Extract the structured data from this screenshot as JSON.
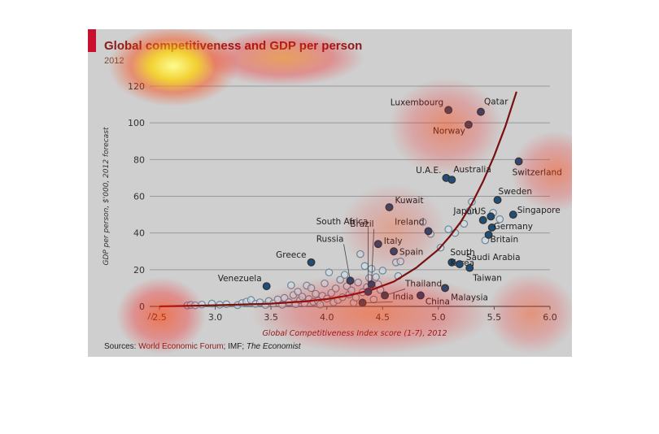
{
  "header": {
    "title": "Global competitiveness and GDP per person",
    "subtitle": "2012"
  },
  "footer": {
    "sources_prefix": "Sources: ",
    "source_wef": "World Economic Forum",
    "source_sep": "; IMF; ",
    "source_economist": "The Economist"
  },
  "colors": {
    "background": "#cfcfcf",
    "curve": "#7a1010",
    "highlight_point": "#1f4e79",
    "point_fill": "#cfe0ea",
    "point_stroke": "#6f8796",
    "title": "#8b1a1a"
  },
  "chart_data": {
    "type": "scatter",
    "title": "Global competitiveness and GDP per person",
    "subtitle": "2012",
    "xlabel": "Global Competitiveness Index score (1-7), 2012",
    "ylabel": "GDP per person, $'000, 2012 forecast",
    "xlim": [
      2.5,
      6.0
    ],
    "ylim": [
      0,
      120
    ],
    "xticks": [
      "2.5",
      "3.0",
      "3.5",
      "4.0",
      "4.5",
      "5.0",
      "5.5",
      "6.0"
    ],
    "yticks": [
      "0",
      "20",
      "40",
      "60",
      "80",
      "100",
      "120"
    ],
    "grid": "horizontal",
    "labeled_points": [
      {
        "label": "Luxembourg",
        "x": 5.09,
        "y": 107
      },
      {
        "label": "Qatar",
        "x": 5.38,
        "y": 106
      },
      {
        "label": "Norway",
        "x": 5.27,
        "y": 99
      },
      {
        "label": "Switzerland",
        "x": 5.72,
        "y": 79
      },
      {
        "label": "U.A.E.",
        "x": 5.07,
        "y": 70
      },
      {
        "label": "Australia",
        "x": 5.12,
        "y": 69
      },
      {
        "label": "Sweden",
        "x": 5.53,
        "y": 58
      },
      {
        "label": "Kuwait",
        "x": 4.56,
        "y": 54
      },
      {
        "label": "Japan",
        "x": 5.4,
        "y": 47
      },
      {
        "label": "US",
        "x": 5.47,
        "y": 49
      },
      {
        "label": "Singapore",
        "x": 5.67,
        "y": 50
      },
      {
        "label": "Germany",
        "x": 5.48,
        "y": 43
      },
      {
        "label": "Ireland",
        "x": 4.91,
        "y": 41
      },
      {
        "label": "Britain",
        "x": 5.45,
        "y": 39
      },
      {
        "label": "Italy",
        "x": 4.46,
        "y": 34
      },
      {
        "label": "Spain",
        "x": 4.6,
        "y": 30
      },
      {
        "label": "South Korea",
        "x": 5.12,
        "y": 24
      },
      {
        "label": "Saudi Arabia",
        "x": 5.19,
        "y": 23
      },
      {
        "label": "Taiwan",
        "x": 5.28,
        "y": 21
      },
      {
        "label": "Greece",
        "x": 3.86,
        "y": 24
      },
      {
        "label": "Brazil",
        "x": 4.4,
        "y": 12
      },
      {
        "label": "Russia",
        "x": 4.21,
        "y": 14
      },
      {
        "label": "South Africa",
        "x": 4.37,
        "y": 8
      },
      {
        "label": "Venezuela",
        "x": 3.46,
        "y": 11
      },
      {
        "label": "Thailand",
        "x": 4.52,
        "y": 6
      },
      {
        "label": "Malaysia",
        "x": 5.06,
        "y": 10
      },
      {
        "label": "India",
        "x": 4.32,
        "y": 2
      },
      {
        "label": "China",
        "x": 4.84,
        "y": 6
      }
    ],
    "unlabeled_points": [
      {
        "x": 2.75,
        "y": 0.5
      },
      {
        "x": 2.78,
        "y": 0.8
      },
      {
        "x": 2.82,
        "y": 0.6
      },
      {
        "x": 2.88,
        "y": 1.0
      },
      {
        "x": 2.97,
        "y": 1.5
      },
      {
        "x": 3.04,
        "y": 0.9
      },
      {
        "x": 3.1,
        "y": 1.2
      },
      {
        "x": 3.2,
        "y": 0.7
      },
      {
        "x": 3.24,
        "y": 1.8
      },
      {
        "x": 3.28,
        "y": 2.6
      },
      {
        "x": 3.32,
        "y": 3.5
      },
      {
        "x": 3.36,
        "y": 1.4
      },
      {
        "x": 3.4,
        "y": 2.2
      },
      {
        "x": 3.45,
        "y": 0.8
      },
      {
        "x": 3.48,
        "y": 2.9
      },
      {
        "x": 3.52,
        "y": 1.6
      },
      {
        "x": 3.56,
        "y": 3.8
      },
      {
        "x": 3.6,
        "y": 0.9
      },
      {
        "x": 3.62,
        "y": 4.6
      },
      {
        "x": 3.66,
        "y": 2.3
      },
      {
        "x": 3.68,
        "y": 11.5
      },
      {
        "x": 3.7,
        "y": 6.2
      },
      {
        "x": 3.72,
        "y": 1.2
      },
      {
        "x": 3.74,
        "y": 8.0
      },
      {
        "x": 3.76,
        "y": 3.4
      },
      {
        "x": 3.78,
        "y": 5.3
      },
      {
        "x": 3.8,
        "y": 1.8
      },
      {
        "x": 3.82,
        "y": 11.3
      },
      {
        "x": 3.84,
        "y": 4.0
      },
      {
        "x": 3.86,
        "y": 10.0
      },
      {
        "x": 3.88,
        "y": 2.5
      },
      {
        "x": 3.9,
        "y": 6.8
      },
      {
        "x": 3.92,
        "y": 3.0
      },
      {
        "x": 3.94,
        "y": 1.0
      },
      {
        "x": 3.96,
        "y": 5.8
      },
      {
        "x": 3.98,
        "y": 12.5
      },
      {
        "x": 4.0,
        "y": 4.2
      },
      {
        "x": 4.02,
        "y": 18.5
      },
      {
        "x": 4.04,
        "y": 7.3
      },
      {
        "x": 4.06,
        "y": 2.2
      },
      {
        "x": 4.08,
        "y": 9.8
      },
      {
        "x": 4.1,
        "y": 3.5
      },
      {
        "x": 4.12,
        "y": 14.5
      },
      {
        "x": 4.14,
        "y": 5.0
      },
      {
        "x": 4.16,
        "y": 17.2
      },
      {
        "x": 4.18,
        "y": 11.0
      },
      {
        "x": 4.2,
        "y": 6.5
      },
      {
        "x": 4.22,
        "y": 8.7
      },
      {
        "x": 4.24,
        "y": 2.0
      },
      {
        "x": 4.26,
        "y": 4.8
      },
      {
        "x": 4.28,
        "y": 13.0
      },
      {
        "x": 4.3,
        "y": 28.5
      },
      {
        "x": 4.32,
        "y": 7.7
      },
      {
        "x": 4.34,
        "y": 22.0
      },
      {
        "x": 4.36,
        "y": 10.5
      },
      {
        "x": 4.38,
        "y": 15.5
      },
      {
        "x": 4.4,
        "y": 20.5
      },
      {
        "x": 4.42,
        "y": 3.8
      },
      {
        "x": 4.44,
        "y": 16.0
      },
      {
        "x": 4.46,
        "y": 12.0
      },
      {
        "x": 4.48,
        "y": 9.0
      },
      {
        "x": 4.5,
        "y": 19.5
      },
      {
        "x": 4.62,
        "y": 24.0
      },
      {
        "x": 4.64,
        "y": 16.5
      },
      {
        "x": 4.66,
        "y": 24.5
      },
      {
        "x": 4.86,
        "y": 46.0
      },
      {
        "x": 4.93,
        "y": 39.5
      },
      {
        "x": 5.02,
        "y": 32.0
      },
      {
        "x": 5.09,
        "y": 42.0
      },
      {
        "x": 5.15,
        "y": 40.0
      },
      {
        "x": 5.23,
        "y": 45.0
      },
      {
        "x": 5.28,
        "y": 52.0
      },
      {
        "x": 5.3,
        "y": 57.0
      },
      {
        "x": 5.42,
        "y": 36.0
      },
      {
        "x": 5.49,
        "y": 51.0
      },
      {
        "x": 5.55,
        "y": 47.5
      }
    ],
    "trend_curve": [
      {
        "x": 2.5,
        "y": 0.0
      },
      {
        "x": 3.0,
        "y": 0.6
      },
      {
        "x": 3.5,
        "y": 1.5
      },
      {
        "x": 3.8,
        "y": 2.7
      },
      {
        "x": 4.0,
        "y": 4.0
      },
      {
        "x": 4.2,
        "y": 6.0
      },
      {
        "x": 4.4,
        "y": 9.0
      },
      {
        "x": 4.6,
        "y": 13.5
      },
      {
        "x": 4.8,
        "y": 21.0
      },
      {
        "x": 5.0,
        "y": 31.0
      },
      {
        "x": 5.1,
        "y": 38.0
      },
      {
        "x": 5.2,
        "y": 46.0
      },
      {
        "x": 5.3,
        "y": 56.0
      },
      {
        "x": 5.4,
        "y": 68.0
      },
      {
        "x": 5.5,
        "y": 82.0
      },
      {
        "x": 5.6,
        "y": 98.0
      },
      {
        "x": 5.7,
        "y": 117.0
      }
    ]
  }
}
